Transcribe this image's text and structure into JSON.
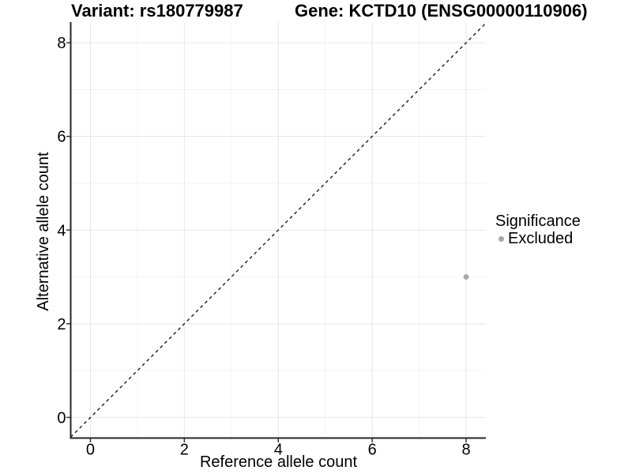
{
  "figure": {
    "title_variant": "Variant: rs180779987",
    "title_gene": "Gene: KCTD10 (ENSG00000110906)"
  },
  "chart_data": {
    "type": "scatter",
    "title_variant": "Variant: rs180779987",
    "title_gene": "Gene: KCTD10 (ENSG00000110906)",
    "xlabel": "Reference allele count",
    "ylabel": "Alternative allele count",
    "xlim": [
      -0.42,
      8.42
    ],
    "ylim": [
      -0.44,
      8.44
    ],
    "x_ticks": [
      0,
      2,
      4,
      6,
      8
    ],
    "y_ticks": [
      0,
      2,
      4,
      6,
      8
    ],
    "x_minor": [
      1,
      3,
      5,
      7
    ],
    "y_minor": [
      1,
      3,
      5,
      7
    ],
    "grid": true,
    "reference_line": {
      "kind": "identity",
      "style": "dashed",
      "color": "#1a1a1a"
    },
    "series": [
      {
        "name": "Excluded",
        "color": "#a8a8a8",
        "points": [
          {
            "x": 8,
            "y": 3
          }
        ]
      }
    ],
    "legend": {
      "title": "Significance",
      "position": "right",
      "items": [
        {
          "label": "Excluded",
          "color": "#a8a8a8"
        }
      ]
    },
    "colors": {
      "grid_major": "#e6e6e6",
      "grid_minor": "#f3f3f3",
      "axis_line": "#262626",
      "tick_mark": "#333333",
      "tick_label": "#000000",
      "background": "#ffffff"
    }
  }
}
